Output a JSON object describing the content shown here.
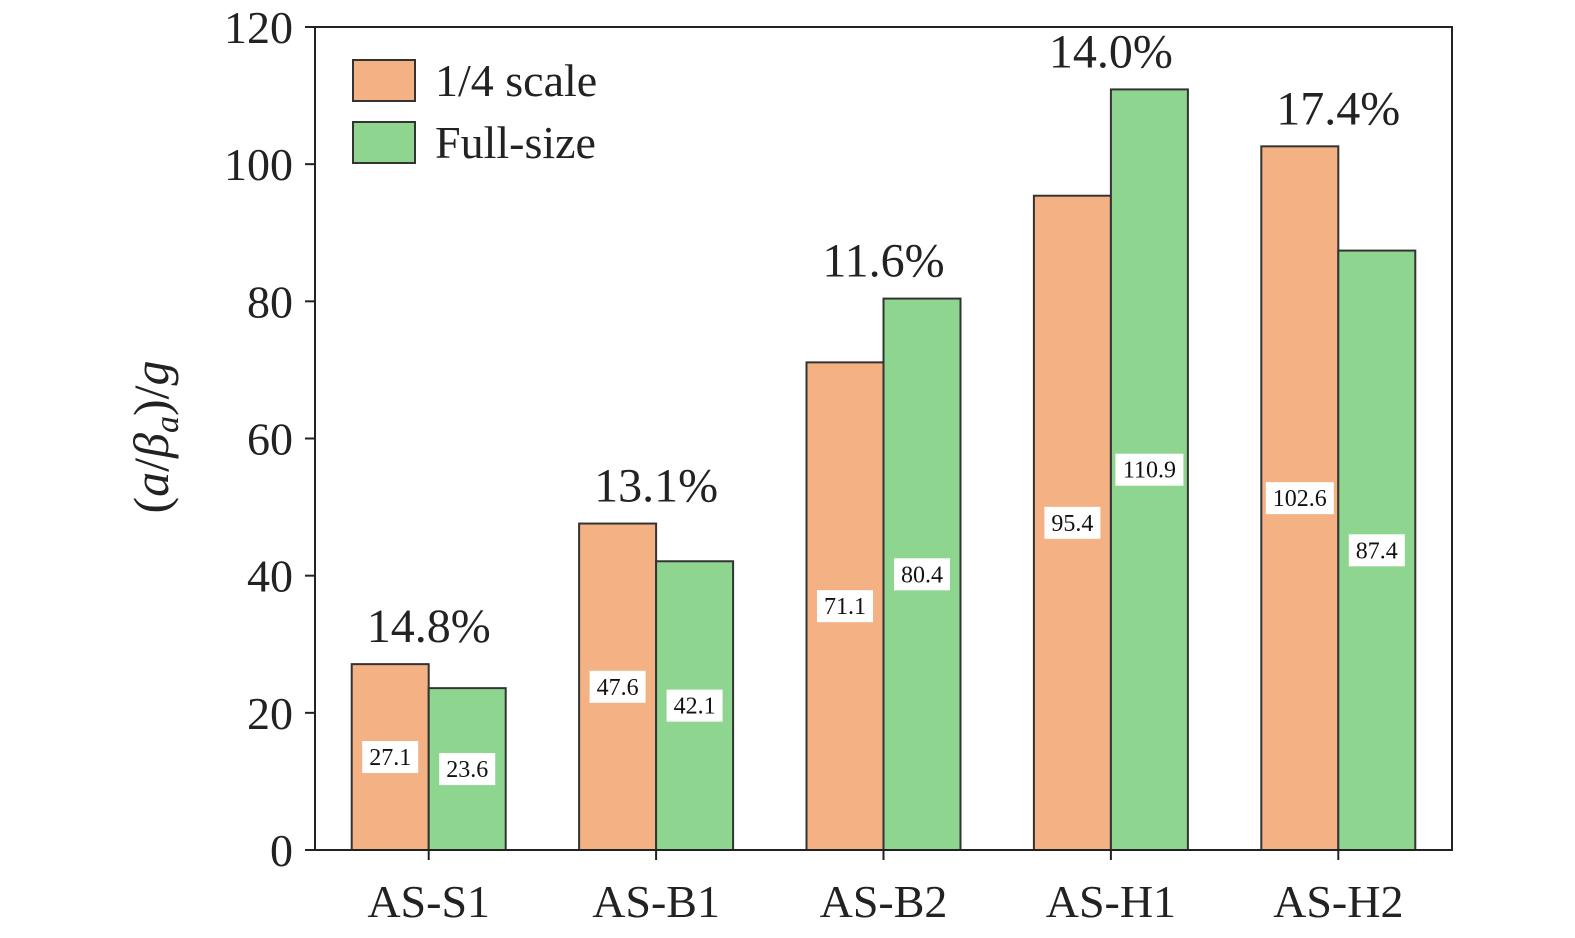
{
  "chart_data": {
    "type": "bar",
    "categories": [
      "AS-S1",
      "AS-B1",
      "AS-B2",
      "AS-H1",
      "AS-H2"
    ],
    "series": [
      {
        "name": "1/4 scale",
        "color": "#F4B183",
        "values": [
          27.1,
          47.6,
          71.1,
          95.4,
          102.6
        ]
      },
      {
        "name": "Full-size",
        "color": "#8ED68F",
        "values": [
          23.6,
          42.1,
          80.4,
          110.9,
          87.4
        ]
      }
    ],
    "data_labels": [
      [
        "27.1",
        "47.6",
        "71.1",
        "95.4",
        "102.6"
      ],
      [
        "23.6",
        "42.1",
        "80.4",
        "110.9",
        "87.4"
      ]
    ],
    "annotations": [
      "14.8%",
      "13.1%",
      "11.6%",
      "14.0%",
      "17.4%"
    ],
    "ylabel": {
      "open": "(",
      "a": "a",
      "slash": "/",
      "beta": "β",
      "sub": "a",
      "close": ")",
      "slash2": "/",
      "g": "g"
    },
    "ylim": [
      0,
      120
    ],
    "yticks": [
      "0",
      "20",
      "40",
      "60",
      "80",
      "100",
      "120"
    ],
    "grid": false,
    "legend_position": "top-left"
  }
}
